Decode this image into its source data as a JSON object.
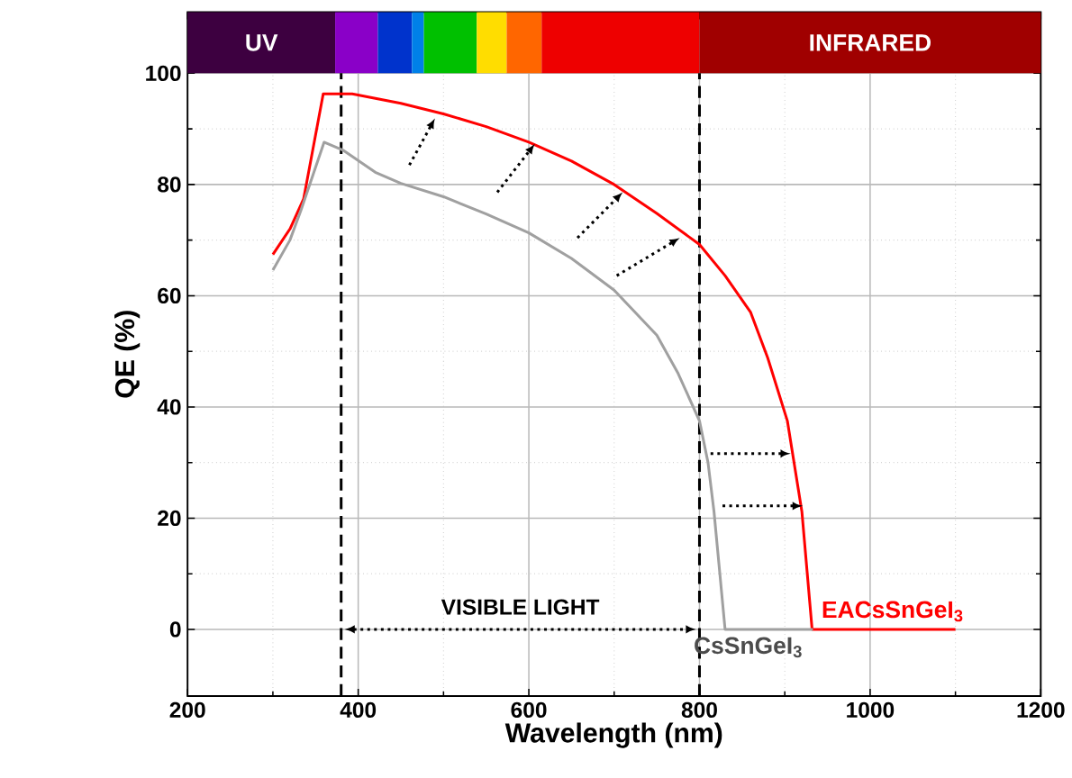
{
  "chart_data": {
    "type": "line",
    "xlabel": "Wavelength (nm)",
    "ylabel": "QE (%)",
    "xlim": [
      200,
      1200
    ],
    "ylim": [
      -12,
      111
    ],
    "xticks": [
      200,
      400,
      600,
      800,
      1000,
      1200
    ],
    "yticks": [
      0,
      20,
      40,
      60,
      80,
      100
    ],
    "grid": true,
    "series": [
      {
        "name": "EACsSnGeI$_{3}$",
        "color": "#ff0000",
        "x": [
          300,
          320,
          336,
          359,
          393,
          450,
          500,
          550,
          600,
          650,
          700,
          750,
          800,
          830,
          860,
          880,
          903,
          920,
          932,
          1100
        ],
        "values": [
          67.4,
          72,
          77.4,
          96.3,
          96.3,
          94.6,
          92.7,
          90.4,
          87.6,
          84.2,
          80,
          74.8,
          69.2,
          63.6,
          57,
          48.8,
          37.5,
          21.2,
          0,
          0
        ]
      },
      {
        "name": "CsSnGeI$_{3}$",
        "color": "#a0a0a0",
        "x": [
          300,
          320,
          333,
          360,
          383,
          420,
          450,
          500,
          550,
          600,
          650,
          700,
          750,
          775,
          800,
          810,
          817,
          830,
          933
        ],
        "values": [
          64.6,
          70,
          75.4,
          87.6,
          86.1,
          82.2,
          80.2,
          77.8,
          74.7,
          71.3,
          66.7,
          61,
          52.9,
          46,
          37.5,
          30,
          21.2,
          0,
          0
        ]
      }
    ],
    "ref_lines": [
      {
        "axis": "x",
        "value": 380,
        "line_style": "dashed",
        "color": "#000000"
      },
      {
        "axis": "x",
        "value": 800,
        "line_style": "dashed",
        "color": "#000000"
      }
    ],
    "bands": [
      {
        "axis": "x",
        "from": 200,
        "to": 373,
        "color": "#3d0040",
        "label": "UV"
      },
      {
        "axis": "x",
        "from": 373,
        "to": 423,
        "color": "#8a00c8"
      },
      {
        "axis": "x",
        "from": 423,
        "to": 463,
        "color": "#0033cc"
      },
      {
        "axis": "x",
        "from": 463,
        "to": 477,
        "color": "#0080e8"
      },
      {
        "axis": "x",
        "from": 477,
        "to": 539,
        "color": "#00c000"
      },
      {
        "axis": "x",
        "from": 539,
        "to": 574,
        "color": "#ffdd00"
      },
      {
        "axis": "x",
        "from": 574,
        "to": 615,
        "color": "#ff6600"
      },
      {
        "axis": "x",
        "from": 615,
        "to": 800,
        "color": "#ee0000"
      },
      {
        "axis": "x",
        "from": 800,
        "to": 1200,
        "color": "#a00000",
        "label": "INFRARED"
      }
    ],
    "annotations": [
      "VISIBLE LIGHT"
    ]
  }
}
